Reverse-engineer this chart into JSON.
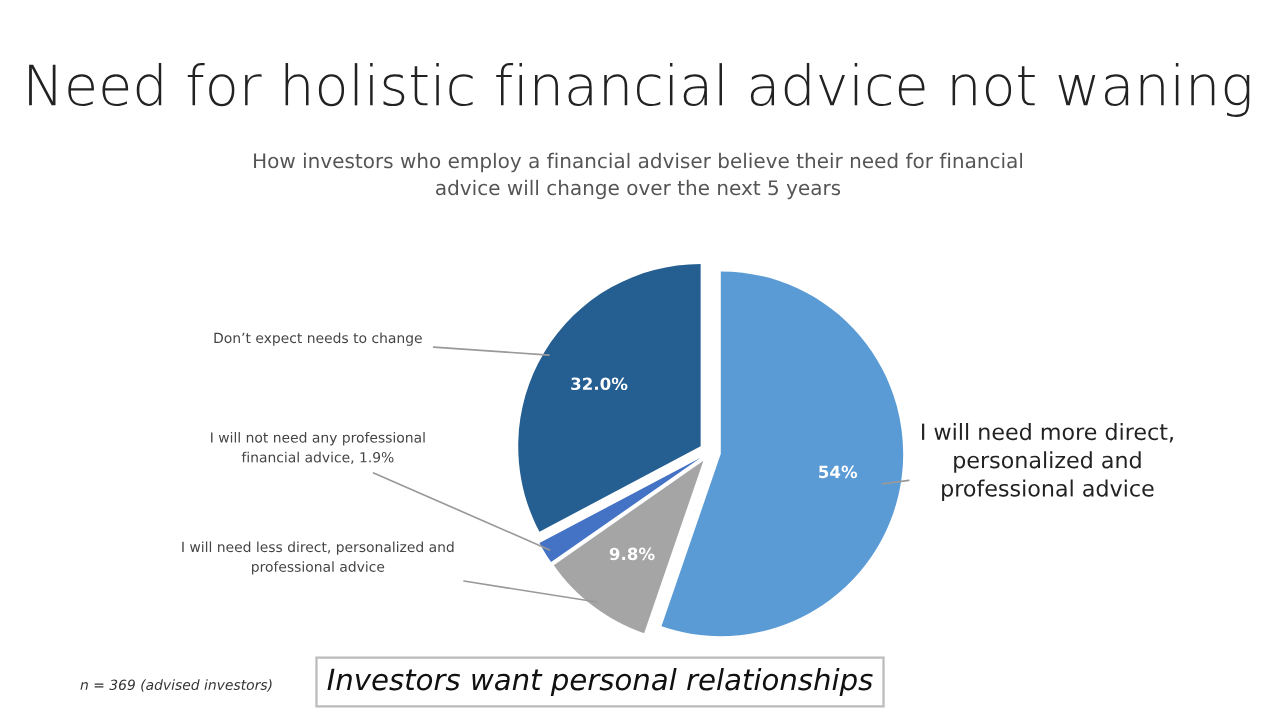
{
  "chart_data": {
    "type": "pie",
    "title": "Need for holistic financial advice not waning",
    "subtitle": "How investors who employ a financial adviser believe their need for financial advice will change over the next 5 years",
    "categories": [
      "I will need more direct, personalized and professional advice",
      "I will need less direct, personalized and professional advice",
      "I will not need any professional financial advice",
      "Don’t expect needs to change"
    ],
    "values": [
      54,
      9.8,
      1.9,
      32.0
    ],
    "value_labels": [
      "54%",
      "9.8%",
      "1.9%",
      "32.0%"
    ],
    "colors": [
      "#5b9bd5",
      "#a5a5a5",
      "#4472c4",
      "#255e91"
    ],
    "annotations": [
      "n = 369 (advised investors)",
      "Investors want personal relationships"
    ]
  }
}
